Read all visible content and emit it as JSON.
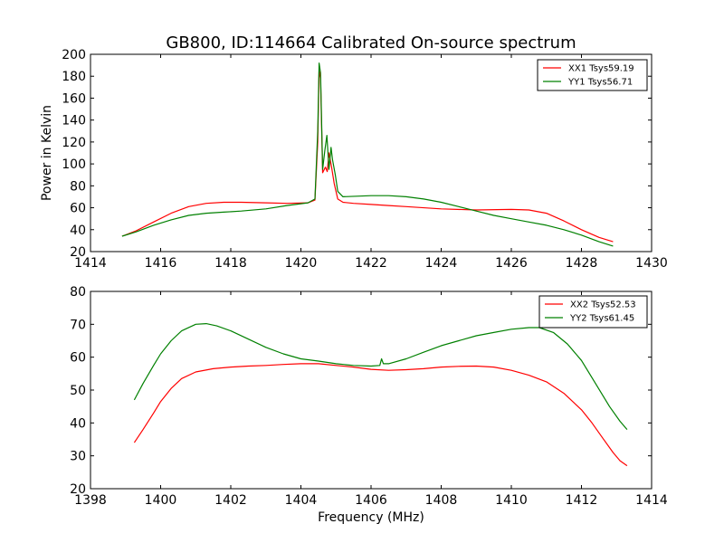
{
  "title": "GB800, ID:114664 Calibrated On-source spectrum",
  "colors": {
    "xx": "#ff0000",
    "yy": "#008000",
    "axes": "#000000",
    "background": "#ffffff"
  },
  "chart_data": [
    {
      "type": "line",
      "title": "GB800, ID:114664 Calibrated On-source spectrum",
      "xlabel": "",
      "ylabel": "Power in Kelvin",
      "xlim": [
        1414,
        1430
      ],
      "ylim": [
        20,
        200
      ],
      "xticks": [
        "1414",
        "1416",
        "1418",
        "1420",
        "1422",
        "1424",
        "1426",
        "1428",
        "1430"
      ],
      "yticks": [
        "20",
        "40",
        "60",
        "80",
        "100",
        "120",
        "140",
        "160",
        "180",
        "200"
      ],
      "grid": false,
      "legend_position": "top-right",
      "series": [
        {
          "name": "XX1 Tsys59.19",
          "color": "#ff0000",
          "x": [
            1414.9,
            1415.3,
            1415.8,
            1416.3,
            1416.8,
            1417.3,
            1417.8,
            1418.3,
            1419.0,
            1419.6,
            1420.2,
            1420.4,
            1420.48,
            1420.52,
            1420.56,
            1420.62,
            1420.7,
            1420.75,
            1420.8,
            1420.88,
            1420.95,
            1421.05,
            1421.2,
            1421.5,
            1422.0,
            1422.5,
            1423.0,
            1424.0,
            1425.0,
            1426.0,
            1426.5,
            1427.0,
            1427.5,
            1428.0,
            1428.5,
            1428.9
          ],
          "y": [
            34,
            39,
            47,
            55,
            61,
            64,
            65,
            65,
            64.5,
            64,
            64.5,
            67,
            120,
            185,
            178,
            92,
            97,
            93,
            110,
            96,
            82,
            68,
            65,
            64,
            63,
            62,
            61,
            59,
            58,
            58.5,
            58,
            55,
            48,
            40,
            33,
            29
          ]
        },
        {
          "name": "YY1 Tsys56.71",
          "color": "#008000",
          "x": [
            1414.9,
            1415.3,
            1415.8,
            1416.3,
            1416.8,
            1417.3,
            1417.8,
            1418.3,
            1419.0,
            1419.6,
            1420.2,
            1420.4,
            1420.48,
            1420.52,
            1420.56,
            1420.62,
            1420.68,
            1420.74,
            1420.8,
            1420.86,
            1420.9,
            1420.98,
            1421.05,
            1421.2,
            1421.6,
            1422.0,
            1422.5,
            1423.0,
            1423.5,
            1424.0,
            1424.5,
            1425.0,
            1425.5,
            1426.0,
            1426.5,
            1427.0,
            1427.5,
            1428.0,
            1428.5,
            1428.9
          ],
          "y": [
            34,
            38,
            44,
            49,
            53,
            55,
            56,
            57,
            59,
            62,
            64.5,
            68,
            130,
            192,
            183,
            95,
            112,
            126,
            95,
            115,
            104,
            90,
            75,
            70,
            70.5,
            71,
            71,
            70,
            68,
            65,
            61,
            57,
            53,
            50,
            47,
            44,
            40,
            35,
            29,
            25
          ]
        }
      ]
    },
    {
      "type": "line",
      "title": "",
      "xlabel": "Frequency (MHz)",
      "ylabel": "",
      "xlim": [
        1398,
        1414
      ],
      "ylim": [
        20,
        80
      ],
      "xticks": [
        "1398",
        "1400",
        "1402",
        "1404",
        "1406",
        "1408",
        "1410",
        "1412",
        "1414"
      ],
      "yticks": [
        "20",
        "30",
        "40",
        "50",
        "60",
        "70",
        "80"
      ],
      "grid": false,
      "legend_position": "top-right",
      "series": [
        {
          "name": "XX2 Tsys52.53",
          "color": "#ff0000",
          "x": [
            1399.25,
            1399.5,
            1399.8,
            1400.0,
            1400.3,
            1400.6,
            1401.0,
            1401.5,
            1402.0,
            1402.5,
            1403.0,
            1403.5,
            1404.0,
            1404.5,
            1405.0,
            1405.5,
            1406.0,
            1406.5,
            1407.0,
            1407.5,
            1408.0,
            1408.5,
            1409.0,
            1409.5,
            1410.0,
            1410.5,
            1411.0,
            1411.5,
            1412.0,
            1412.3,
            1412.6,
            1412.9,
            1413.1,
            1413.3
          ],
          "y": [
            34,
            38,
            43,
            46.5,
            50.5,
            53.5,
            55.5,
            56.5,
            57,
            57.3,
            57.5,
            57.8,
            58,
            58,
            57.5,
            57,
            56.3,
            56,
            56.2,
            56.5,
            57,
            57.2,
            57.3,
            57,
            56,
            54.5,
            52.5,
            49,
            44,
            40,
            35.5,
            31,
            28.5,
            27
          ]
        },
        {
          "name": "YY2 Tsys61.45",
          "color": "#008000",
          "x": [
            1399.25,
            1399.5,
            1399.8,
            1400.0,
            1400.3,
            1400.6,
            1401.0,
            1401.3,
            1401.6,
            1402.0,
            1402.5,
            1403.0,
            1403.5,
            1404.0,
            1404.5,
            1405.0,
            1405.5,
            1406.0,
            1406.25,
            1406.3,
            1406.35,
            1406.5,
            1407.0,
            1407.5,
            1408.0,
            1408.5,
            1409.0,
            1409.5,
            1410.0,
            1410.5,
            1410.8,
            1411.2,
            1411.6,
            1412.0,
            1412.4,
            1412.8,
            1413.1,
            1413.3
          ],
          "y": [
            47,
            52,
            57.5,
            61,
            65,
            68,
            70,
            70.2,
            69.5,
            68,
            65.5,
            63,
            61,
            59.5,
            58.8,
            58,
            57.5,
            57.3,
            57.5,
            59.5,
            58,
            58,
            59.5,
            61.5,
            63.5,
            65,
            66.5,
            67.5,
            68.5,
            69,
            69,
            67.5,
            64,
            59,
            52,
            45,
            40.5,
            38
          ]
        }
      ]
    }
  ]
}
